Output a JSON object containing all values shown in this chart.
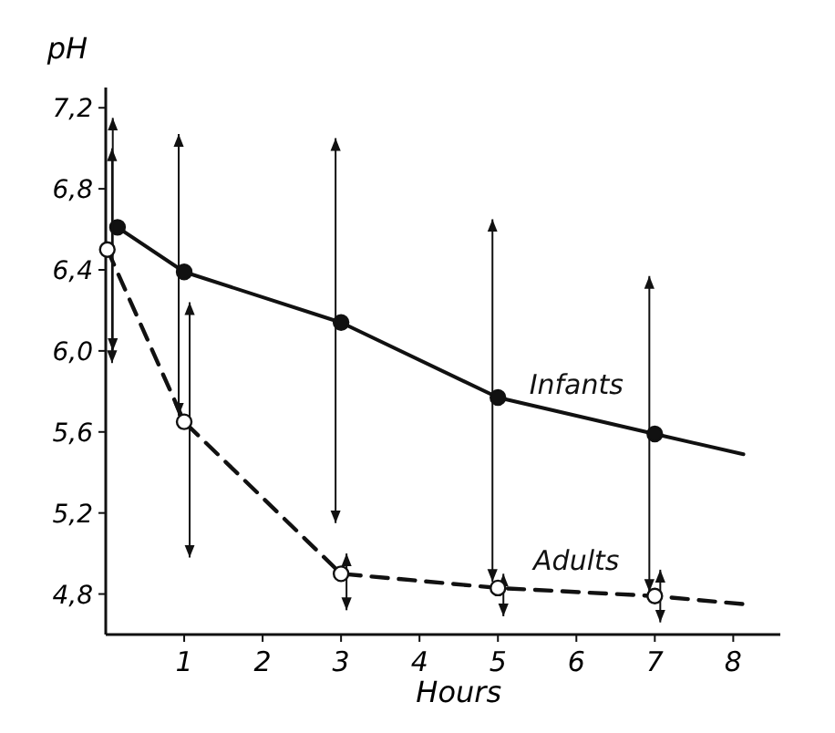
{
  "chart_data": {
    "type": "line",
    "xlabel": "Hours",
    "ylabel": "pH",
    "xlim": [
      0,
      8.6
    ],
    "ylim": [
      4.6,
      7.3
    ],
    "xticks": [
      1,
      2,
      3,
      4,
      5,
      6,
      7,
      8
    ],
    "yticks": [
      {
        "value": 4.8,
        "label": "4,8"
      },
      {
        "value": 5.2,
        "label": "5,2"
      },
      {
        "value": 5.6,
        "label": "5,6"
      },
      {
        "value": 6.0,
        "label": "6,0"
      },
      {
        "value": 6.4,
        "label": "6,4"
      },
      {
        "value": 6.8,
        "label": "6,8"
      },
      {
        "value": 7.2,
        "label": "7,2"
      }
    ],
    "legend": false,
    "grid": false,
    "series": [
      {
        "name": "Infants",
        "color": "#111111",
        "line_style": "solid",
        "marker": "circle",
        "x": [
          0.15,
          1,
          3,
          5,
          7,
          8.13
        ],
        "values": [
          6.61,
          6.39,
          6.14,
          5.77,
          5.59,
          5.49
        ],
        "errors": [
          [
            5.94,
            7.0
          ],
          [
            5.68,
            7.07
          ],
          [
            5.15,
            7.05
          ],
          [
            4.86,
            6.65
          ],
          [
            4.81,
            6.37
          ],
          null
        ]
      },
      {
        "name": "Adults",
        "color": "#111111",
        "line_style": "dashed",
        "marker": "circle",
        "x": [
          0.02,
          1,
          3,
          5,
          7,
          8.13
        ],
        "values": [
          6.5,
          5.65,
          4.9,
          4.83,
          4.79,
          4.75
        ],
        "errors": [
          [
            6.0,
            7.15
          ],
          [
            4.98,
            6.24
          ],
          [
            4.72,
            5.0
          ],
          [
            4.69,
            4.9
          ],
          [
            4.66,
            4.92
          ],
          null
        ]
      }
    ]
  }
}
